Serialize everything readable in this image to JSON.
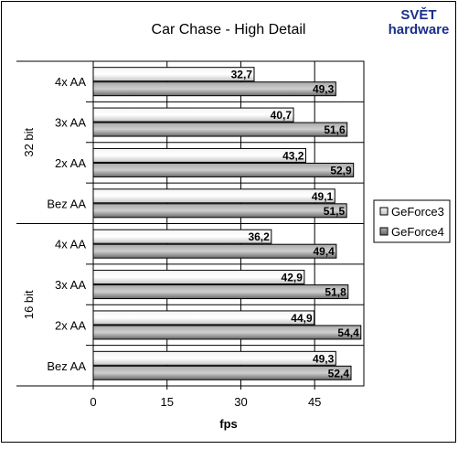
{
  "logo": {
    "line1": "SVĚT",
    "line2": "hardware"
  },
  "chart_data": {
    "type": "bar",
    "orientation": "horizontal",
    "title": "Car Chase - High Detail",
    "xlabel": "fps",
    "ylabel": "",
    "xlim": [
      0,
      55
    ],
    "xticks": [
      0,
      15,
      30,
      45
    ],
    "grid": true,
    "legend_position": "right",
    "groups": [
      {
        "label": "32 bit",
        "categories": [
          "4x AA",
          "3x AA",
          "2x AA",
          "Bez AA"
        ]
      },
      {
        "label": "16 bit",
        "categories": [
          "4x AA",
          "3x AA",
          "2x AA",
          "Bez AA"
        ]
      }
    ],
    "series": [
      {
        "name": "GeForce3",
        "color": "#d8d8d8",
        "values": [
          32.7,
          40.7,
          43.2,
          49.1,
          36.2,
          42.9,
          44.9,
          49.3
        ],
        "labels": [
          "32,7",
          "40,7",
          "43,2",
          "49,1",
          "36,2",
          "42,9",
          "44,9",
          "49,3"
        ]
      },
      {
        "name": "GeForce4",
        "color": "#8c8c8c",
        "values": [
          49.3,
          51.6,
          52.9,
          51.5,
          49.4,
          51.8,
          54.4,
          52.4
        ],
        "labels": [
          "49,3",
          "51,6",
          "52,9",
          "51,5",
          "49,4",
          "51,8",
          "54,4",
          "52,4"
        ]
      }
    ],
    "colors": {
      "background": "#ffffff",
      "plot_area": "#ffffff",
      "border": "#000000",
      "grid": "#000000",
      "logo_blue": "#1a2f8a"
    }
  }
}
